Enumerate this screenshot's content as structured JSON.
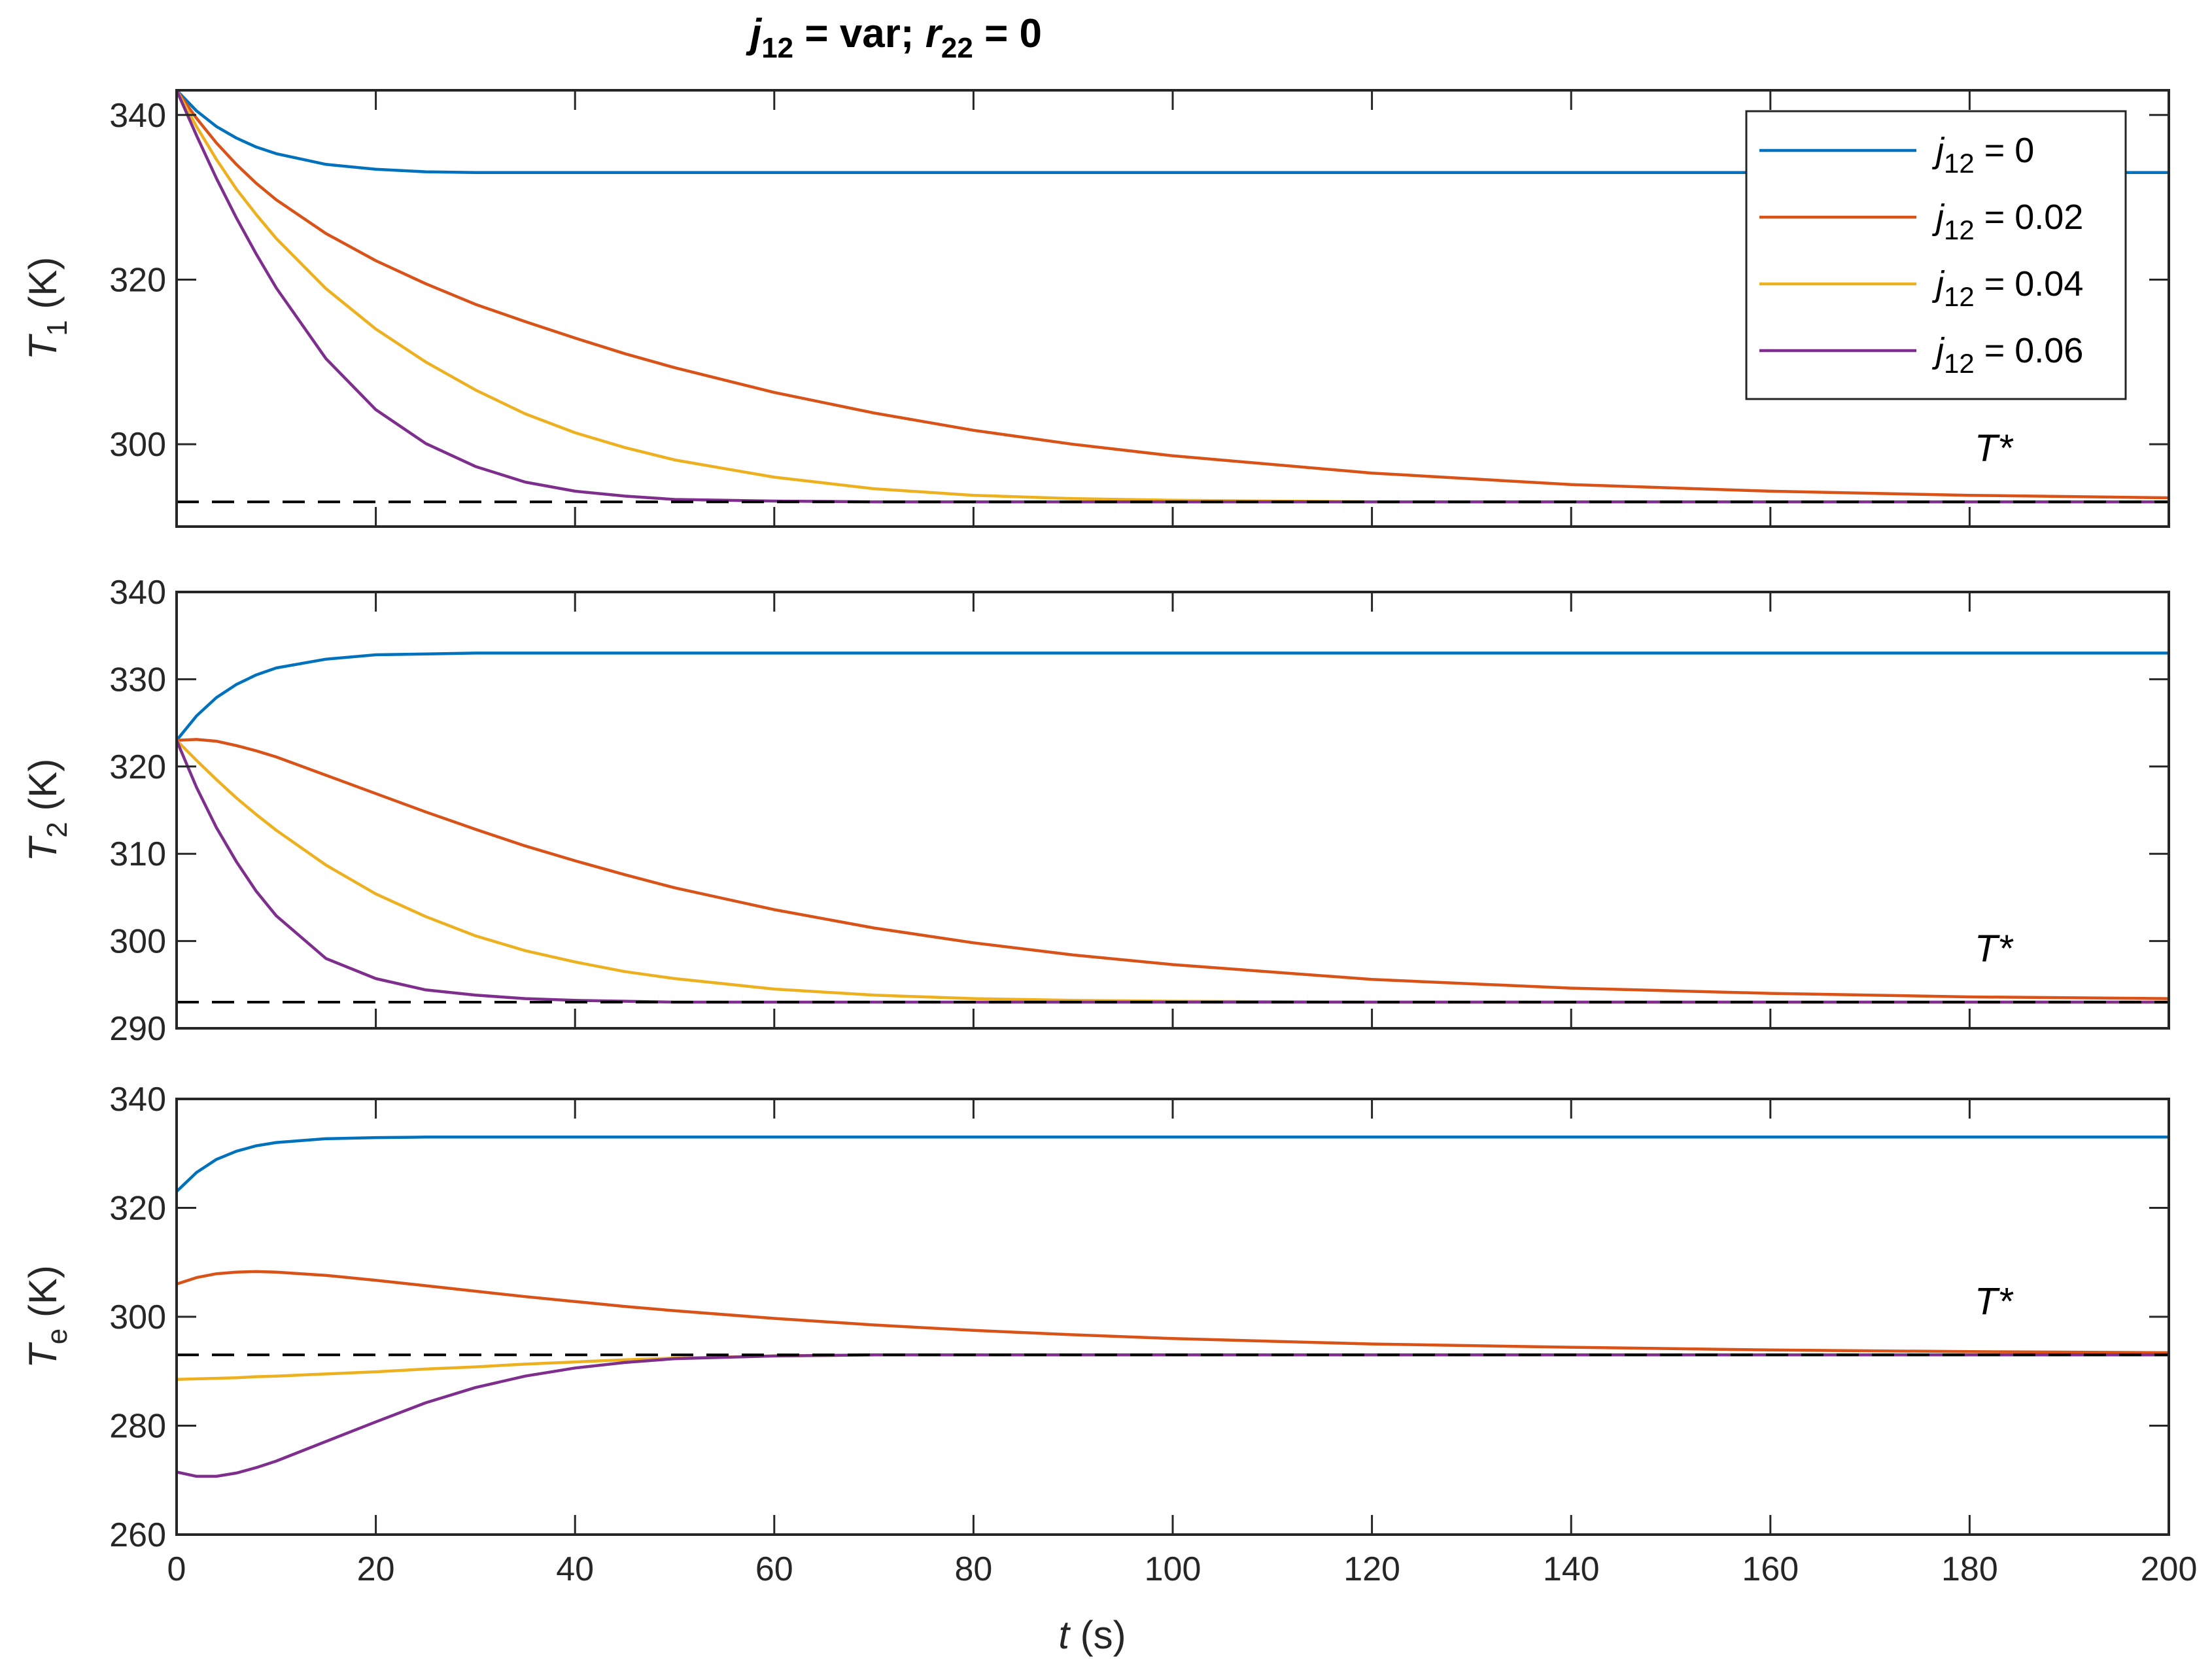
{
  "title": {
    "var": "j",
    "sub": "12",
    "mid": " = var;  ",
    "var2": "r",
    "sub2": "22",
    "end": " = 0"
  },
  "xaxis": {
    "label_var": "t",
    "label_unit": " (s)",
    "ticks": [
      0,
      20,
      40,
      60,
      80,
      100,
      120,
      140,
      160,
      180,
      200
    ],
    "range": [
      0,
      200
    ]
  },
  "legend": [
    {
      "var": "j",
      "sub": "12",
      "text": " = 0",
      "color": "#0072BD"
    },
    {
      "var": "j",
      "sub": "12",
      "text": " = 0.02",
      "color": "#D95319"
    },
    {
      "var": "j",
      "sub": "12",
      "text": " = 0.04",
      "color": "#EDB120"
    },
    {
      "var": "j",
      "sub": "12",
      "text": " = 0.06",
      "color": "#7E2F8E"
    }
  ],
  "annotation": "T*",
  "reference_line": {
    "value": 293,
    "color": "#000000",
    "style": "dashed"
  },
  "chart_data": [
    {
      "type": "line",
      "ylabel": {
        "var": "T",
        "sub": "1",
        "unit": " (K)"
      },
      "ylim": [
        290,
        343
      ],
      "yticks": [
        300,
        320,
        340
      ],
      "x": [
        0,
        2,
        4,
        6,
        8,
        10,
        15,
        20,
        25,
        30,
        35,
        40,
        45,
        50,
        60,
        70,
        80,
        90,
        100,
        120,
        140,
        160,
        180,
        200
      ],
      "series": [
        {
          "name": "j12 = 0",
          "values": [
            343,
            340.5,
            338.6,
            337.2,
            336.1,
            335.3,
            334.0,
            333.4,
            333.1,
            333,
            333,
            333,
            333,
            333,
            333,
            333,
            333,
            333,
            333,
            333,
            333,
            333,
            333,
            333
          ]
        },
        {
          "name": "j12 = 0.02",
          "values": [
            343,
            339.6,
            336.6,
            334.0,
            331.7,
            329.7,
            325.6,
            322.3,
            319.5,
            317.0,
            314.9,
            312.9,
            311.0,
            309.3,
            306.3,
            303.8,
            301.7,
            300.0,
            298.6,
            296.5,
            295.1,
            294.3,
            293.8,
            293.5
          ]
        },
        {
          "name": "j12 = 0.04",
          "values": [
            343,
            338.6,
            334.6,
            331.0,
            327.9,
            325.0,
            318.9,
            314.0,
            310.0,
            306.6,
            303.7,
            301.4,
            299.6,
            298.1,
            296.0,
            294.6,
            293.8,
            293.4,
            293.2,
            293,
            293,
            293,
            293,
            293
          ]
        },
        {
          "name": "j12 = 0.06",
          "values": [
            343,
            337.5,
            332.3,
            327.5,
            323.1,
            319.0,
            310.4,
            304.2,
            300.1,
            297.3,
            295.4,
            294.3,
            293.7,
            293.3,
            293.1,
            293,
            293,
            293,
            293,
            293,
            293,
            293,
            293,
            293
          ]
        }
      ]
    },
    {
      "type": "line",
      "ylabel": {
        "var": "T",
        "sub": "2",
        "unit": " (K)"
      },
      "ylim": [
        290,
        340
      ],
      "yticks": [
        290,
        300,
        310,
        320,
        330,
        340
      ],
      "x": [
        0,
        2,
        4,
        6,
        8,
        10,
        15,
        20,
        25,
        30,
        35,
        40,
        45,
        50,
        60,
        70,
        80,
        90,
        100,
        120,
        140,
        160,
        180,
        200
      ],
      "series": [
        {
          "name": "j12 = 0",
          "values": [
            323,
            325.8,
            327.9,
            329.4,
            330.5,
            331.3,
            332.3,
            332.8,
            332.9,
            333,
            333,
            333,
            333,
            333,
            333,
            333,
            333,
            333,
            333,
            333,
            333,
            333,
            333,
            333
          ]
        },
        {
          "name": "j12 = 0.02",
          "values": [
            323,
            323.1,
            322.9,
            322.4,
            321.8,
            321.1,
            319.0,
            316.9,
            314.8,
            312.8,
            310.9,
            309.2,
            307.6,
            306.1,
            303.6,
            301.5,
            299.8,
            298.4,
            297.3,
            295.6,
            294.6,
            294.0,
            293.6,
            293.4
          ]
        },
        {
          "name": "j12 = 0.04",
          "values": [
            323,
            320.7,
            318.5,
            316.4,
            314.5,
            312.7,
            308.7,
            305.4,
            302.8,
            300.6,
            298.9,
            297.6,
            296.5,
            295.7,
            294.5,
            293.8,
            293.4,
            293.2,
            293.1,
            293,
            293,
            293,
            293,
            293
          ]
        },
        {
          "name": "j12 = 0.06",
          "values": [
            323,
            317.6,
            313.0,
            309.1,
            305.7,
            302.9,
            298.0,
            295.7,
            294.4,
            293.8,
            293.4,
            293.2,
            293.1,
            293,
            293,
            293,
            293,
            293,
            293,
            293,
            293,
            293,
            293,
            293
          ]
        }
      ]
    },
    {
      "type": "line",
      "ylabel": {
        "var": "T",
        "sub": "e",
        "unit": " (K)"
      },
      "ylim": [
        260,
        340
      ],
      "yticks": [
        260,
        280,
        300,
        320,
        340
      ],
      "x": [
        0,
        2,
        4,
        6,
        8,
        10,
        15,
        20,
        25,
        30,
        35,
        40,
        45,
        50,
        60,
        70,
        80,
        90,
        100,
        120,
        140,
        160,
        180,
        200
      ],
      "series": [
        {
          "name": "j12 = 0",
          "values": [
            323,
            326.5,
            328.9,
            330.4,
            331.4,
            332.0,
            332.7,
            332.9,
            333,
            333,
            333,
            333,
            333,
            333,
            333,
            333,
            333,
            333,
            333,
            333,
            333,
            333,
            333,
            333
          ]
        },
        {
          "name": "j12 = 0.02",
          "values": [
            306,
            307.2,
            307.9,
            308.2,
            308.3,
            308.2,
            307.6,
            306.7,
            305.7,
            304.7,
            303.7,
            302.8,
            301.9,
            301.1,
            299.7,
            298.5,
            297.5,
            296.7,
            296.0,
            295.0,
            294.4,
            293.9,
            293.6,
            293.4
          ]
        },
        {
          "name": "j12 = 0.04",
          "values": [
            288.5,
            288.6,
            288.7,
            288.8,
            289.0,
            289.1,
            289.5,
            289.9,
            290.4,
            290.8,
            291.3,
            291.7,
            292.1,
            292.4,
            292.8,
            293,
            293,
            293,
            293,
            293,
            293,
            293,
            293,
            293
          ]
        },
        {
          "name": "j12 = 0.06",
          "values": [
            271.5,
            270.7,
            270.7,
            271.3,
            272.3,
            273.5,
            277.1,
            280.7,
            284.2,
            287.0,
            289.1,
            290.6,
            291.6,
            292.3,
            292.8,
            293,
            293,
            293,
            293,
            293,
            293,
            293,
            293,
            293
          ]
        }
      ]
    }
  ]
}
